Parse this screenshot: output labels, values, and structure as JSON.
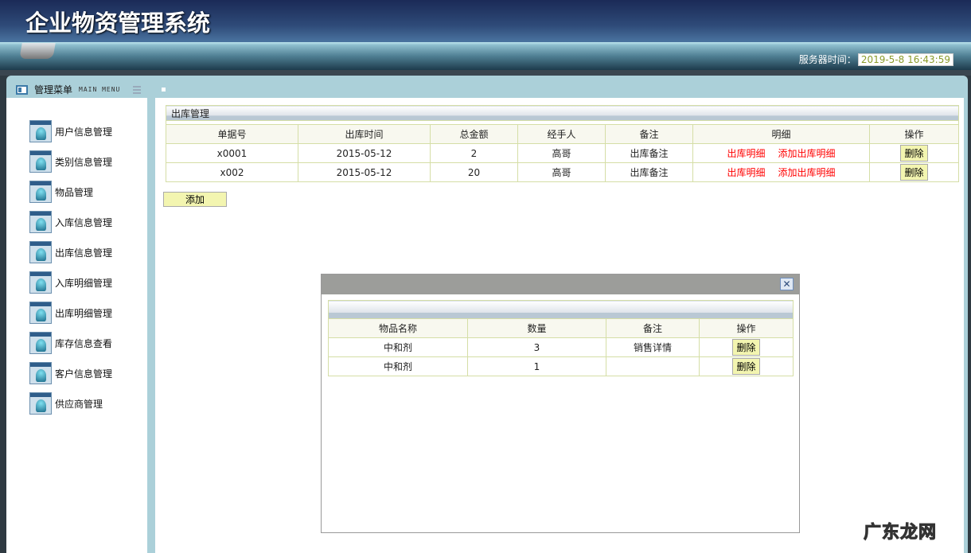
{
  "header": {
    "title": "企业物资管理系统",
    "clock_label": "服务器时间：",
    "clock_value": "2019-5-8 16:43:59"
  },
  "menu": {
    "title": "管理菜单",
    "subtitle": "MAIN MENU",
    "items": [
      {
        "label": "用户信息管理"
      },
      {
        "label": "类别信息管理"
      },
      {
        "label": "物品管理"
      },
      {
        "label": "入库信息管理"
      },
      {
        "label": "出库信息管理"
      },
      {
        "label": "入库明细管理"
      },
      {
        "label": "出库明细管理"
      },
      {
        "label": "库存信息查看"
      },
      {
        "label": "客户信息管理"
      },
      {
        "label": "供应商管理"
      }
    ]
  },
  "main": {
    "title": "出库管理",
    "columns": [
      "单据号",
      "出库时间",
      "总金额",
      "经手人",
      "备注",
      "明细",
      "操作"
    ],
    "rows": [
      {
        "id": "x0001",
        "time": "2015-05-12",
        "amount": "2",
        "handler": "高哥",
        "note": "出库备注",
        "detail": "出库明细",
        "add_detail": "添加出库明细",
        "action": "删除"
      },
      {
        "id": "x002",
        "time": "2015-05-12",
        "amount": "20",
        "handler": "高哥",
        "note": "出库备注",
        "detail": "出库明细",
        "add_detail": "添加出库明细",
        "action": "删除"
      }
    ],
    "add_label": "添加"
  },
  "modal": {
    "close": "✕",
    "columns": [
      "物品名称",
      "数量",
      "备注",
      "操作"
    ],
    "rows": [
      {
        "name": "中和剂",
        "qty": "3",
        "note": "销售详情",
        "action": "删除"
      },
      {
        "name": "中和剂",
        "qty": "1",
        "note": "",
        "action": "删除"
      }
    ]
  },
  "watermark": "广东龙网"
}
